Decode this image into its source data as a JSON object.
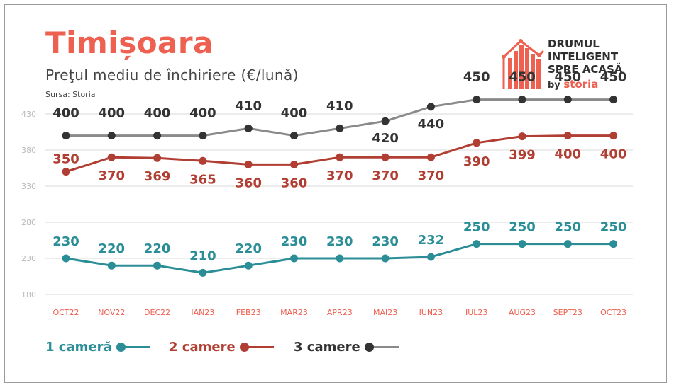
{
  "header": {
    "title": "Timișoara",
    "subtitle": "Preţul mediu de închiriere (€/lună)",
    "source": "Sursa: Storia"
  },
  "logo": {
    "line1": "DRUMUL",
    "line2": "INTELIGENT",
    "line3": "SPRE ACASĂ",
    "by": "by",
    "brand": "storia"
  },
  "legend": {
    "s1": "1 cameră",
    "s2": "2 camere",
    "s3": "3 camere"
  },
  "colors": {
    "s1": "#2b8e97",
    "s2": "#b13e32",
    "s3": "#8a8a8a",
    "s3_label": "#333333",
    "accent": "#ee6050",
    "grid": "#d9d9d9",
    "axis_text": "#bbbbbb"
  },
  "chart_data": {
    "type": "line",
    "categories": [
      "OCT22",
      "NOV22",
      "DEC22",
      "IAN23",
      "FEB23",
      "MAR23",
      "APR23",
      "MAI23",
      "IUN23",
      "IUL23",
      "AUG23",
      "SEPT23",
      "OCT23"
    ],
    "yticks": [
      180,
      230,
      280,
      330,
      380,
      430
    ],
    "ylim": [
      180,
      430
    ],
    "grid": true,
    "legend_position": "bottom-left",
    "series": [
      {
        "name": "1 cameră",
        "values": [
          230,
          220,
          220,
          210,
          220,
          230,
          230,
          230,
          232,
          250,
          250,
          250,
          250
        ]
      },
      {
        "name": "2 camere",
        "values": [
          350,
          370,
          369,
          365,
          360,
          360,
          370,
          370,
          370,
          390,
          399,
          400,
          400
        ]
      },
      {
        "name": "3 camere",
        "values": [
          400,
          400,
          400,
          400,
          410,
          400,
          410,
          420,
          440,
          450,
          450,
          450,
          450
        ]
      }
    ]
  }
}
